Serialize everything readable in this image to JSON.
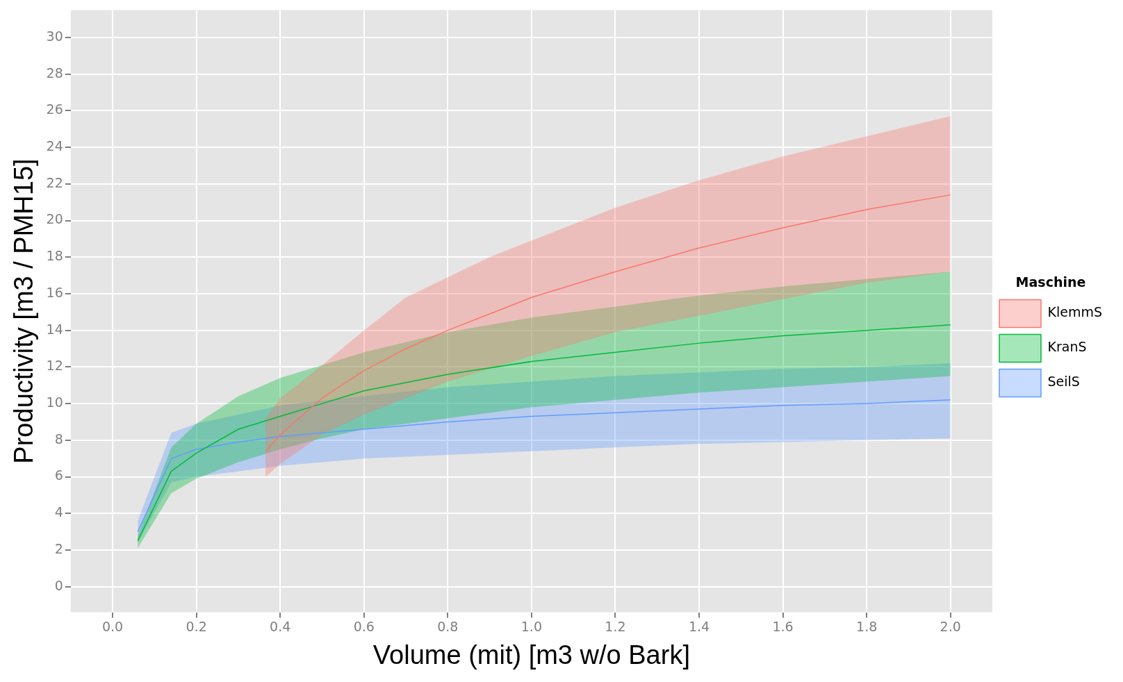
{
  "chart_data": {
    "type": "line",
    "xlabel": "Volume (mit) [m3 w/o Bark]",
    "ylabel": "Productivity [m3 / PMH15]",
    "legend_title": "Maschine",
    "legend": "right",
    "grid": true,
    "marker": "none",
    "xlim": [
      -0.1,
      2.1
    ],
    "ylim": [
      -1.4,
      31.5
    ],
    "xticks": [
      {
        "value": 0,
        "label": "0.0"
      },
      {
        "value": 0.2,
        "label": "0.2"
      },
      {
        "value": 0.4,
        "label": "0.4"
      },
      {
        "value": 0.6,
        "label": "0.6"
      },
      {
        "value": 0.8,
        "label": "0.8"
      },
      {
        "value": 1,
        "label": "1.0"
      },
      {
        "value": 1.2,
        "label": "1.2"
      },
      {
        "value": 1.4,
        "label": "1.4"
      },
      {
        "value": 1.6,
        "label": "1.6"
      },
      {
        "value": 1.8,
        "label": "1.8"
      },
      {
        "value": 2,
        "label": "2.0"
      }
    ],
    "yticks": [
      0,
      2,
      4,
      6,
      8,
      10,
      12,
      14,
      16,
      18,
      20,
      22,
      24,
      26,
      28,
      30
    ],
    "series": [
      {
        "name": "KlemmS",
        "color": "#f8766d",
        "x": [
          0.365,
          0.4,
          0.5,
          0.6,
          0.7,
          0.8,
          0.9,
          1.0,
          1.2,
          1.4,
          1.6,
          1.8,
          2.0
        ],
        "values": [
          7.4,
          8.3,
          10.3,
          11.8,
          13.0,
          14.0,
          14.9,
          15.8,
          17.2,
          18.5,
          19.6,
          20.6,
          21.4
        ],
        "lower": [
          6.0,
          6.7,
          8.3,
          9.4,
          10.3,
          11.2,
          11.9,
          12.6,
          13.9,
          14.8,
          15.7,
          16.6,
          17.2
        ],
        "upper": [
          9.2,
          10.3,
          12.1,
          14.0,
          15.8,
          16.9,
          18.0,
          18.9,
          20.7,
          22.2,
          23.5,
          24.6,
          25.7
        ]
      },
      {
        "name": "KranS",
        "color": "#00ba38",
        "x": [
          0.06,
          0.14,
          0.2,
          0.3,
          0.4,
          0.5,
          0.6,
          0.8,
          1.0,
          1.2,
          1.4,
          1.6,
          1.8,
          2.0
        ],
        "values": [
          2.5,
          6.3,
          7.3,
          8.6,
          9.3,
          10.0,
          10.7,
          11.6,
          12.3,
          12.8,
          13.3,
          13.7,
          14.0,
          14.3
        ],
        "lower": [
          2.1,
          5.1,
          5.9,
          6.8,
          7.5,
          8.1,
          8.6,
          9.2,
          9.8,
          10.2,
          10.6,
          10.9,
          11.2,
          11.5
        ],
        "upper": [
          2.8,
          7.6,
          8.9,
          10.4,
          11.4,
          12.1,
          12.8,
          13.9,
          14.7,
          15.3,
          15.9,
          16.4,
          16.8,
          17.2
        ]
      },
      {
        "name": "SeilS",
        "color": "#619cff",
        "x": [
          0.06,
          0.14,
          0.2,
          0.3,
          0.4,
          0.6,
          0.8,
          1.0,
          1.2,
          1.4,
          1.6,
          1.8,
          2.0
        ],
        "values": [
          3.0,
          7.0,
          7.5,
          7.9,
          8.2,
          8.6,
          9.0,
          9.3,
          9.5,
          9.7,
          9.9,
          10.0,
          10.2
        ],
        "lower": [
          2.4,
          5.7,
          6.0,
          6.3,
          6.6,
          7.0,
          7.2,
          7.4,
          7.6,
          7.8,
          7.9,
          8.0,
          8.1
        ],
        "upper": [
          3.6,
          8.4,
          8.9,
          9.4,
          9.9,
          10.4,
          10.9,
          11.2,
          11.5,
          11.7,
          11.9,
          12.0,
          12.2
        ]
      }
    ]
  }
}
